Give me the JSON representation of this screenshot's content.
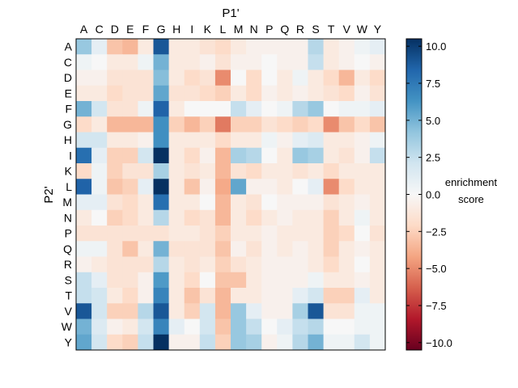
{
  "chart_data": {
    "type": "heatmap",
    "xlabel": "P1'",
    "ylabel": "P2'",
    "x_categories": [
      "A",
      "C",
      "D",
      "E",
      "F",
      "G",
      "H",
      "I",
      "K",
      "L",
      "M",
      "N",
      "P",
      "Q",
      "R",
      "S",
      "T",
      "V",
      "W",
      "Y"
    ],
    "y_categories": [
      "A",
      "C",
      "D",
      "E",
      "F",
      "G",
      "H",
      "I",
      "K",
      "L",
      "M",
      "N",
      "P",
      "Q",
      "R",
      "S",
      "T",
      "V",
      "W",
      "Y"
    ],
    "colorbar": {
      "label_line1": "enrichment",
      "label_line2": "score",
      "vmin": -10.5,
      "vmax": 10.5,
      "ticks": [
        10.0,
        7.5,
        5.0,
        2.5,
        0.0,
        -2.5,
        -5.0,
        -7.5,
        -10.0
      ],
      "tick_labels": [
        "10.0",
        "7.5",
        "5.0",
        "2.5",
        "0.0",
        "−2.5",
        "−5.0",
        "−7.5",
        "−10.0"
      ],
      "colormap": "RdBu diverging (red = negative, blue = positive)"
    },
    "values": [
      [
        4,
        1,
        -3,
        -3.5,
        -1,
        9,
        -1,
        -1,
        -1.5,
        -2,
        -1,
        -0.5,
        -0.5,
        -0.5,
        -0.5,
        3,
        -1,
        -0.5,
        0.5,
        1
      ],
      [
        0.5,
        0,
        -1,
        -1,
        0.5,
        5,
        -1,
        -1,
        -0.5,
        -1.5,
        -0.5,
        -0.5,
        0,
        -0.5,
        -0.5,
        2.5,
        -1,
        -0.5,
        0,
        -0.5
      ],
      [
        -0.5,
        -0.5,
        -1.5,
        -1.5,
        -1.5,
        4.5,
        -1,
        -2,
        -1.5,
        -5,
        0,
        -2,
        0,
        -1,
        0.5,
        -1,
        -2,
        -3.5,
        -1,
        -2
      ],
      [
        -1,
        -1,
        -2,
        -1.5,
        -1.5,
        5.5,
        -1.5,
        -1.5,
        -2,
        -2.5,
        -1,
        -2,
        -0.5,
        -1,
        -0.5,
        -1,
        -1.5,
        -2,
        -0.5,
        -1.5
      ],
      [
        5,
        2,
        -1.5,
        -1.5,
        0.5,
        8.5,
        -1,
        0,
        0,
        0,
        2.5,
        1,
        0,
        0.5,
        3,
        4,
        0,
        0.5,
        0.5,
        1
      ],
      [
        -2,
        -1,
        -3.5,
        -3.5,
        -3.5,
        6.5,
        -2.5,
        -3.5,
        -2.5,
        -5.5,
        -2.5,
        -2.5,
        -1.5,
        -2,
        -2.5,
        -2,
        -5,
        -3,
        -2,
        -3
      ],
      [
        2,
        2,
        -1,
        -1,
        -0.5,
        6.5,
        -1,
        -1,
        -1,
        -2,
        -1,
        -1,
        0.5,
        -0.5,
        1,
        1.5,
        -1,
        -1,
        -0.5,
        0.5
      ],
      [
        8,
        1,
        -2.5,
        -2.5,
        2,
        10.5,
        -1,
        -2,
        -0.5,
        -3.5,
        3.5,
        3,
        0,
        -1,
        4,
        3.5,
        -1,
        -1.5,
        -0.5,
        2.5
      ],
      [
        -2,
        0.5,
        -2.5,
        -1.5,
        -1.5,
        3.5,
        -1,
        -1.5,
        -1,
        -3.5,
        -1.5,
        -2,
        -1,
        -1,
        -1.5,
        -1,
        -2,
        -1,
        -1,
        -1
      ],
      [
        8.5,
        0.5,
        -3,
        -2.5,
        1,
        10.5,
        -1,
        -3,
        -0.5,
        -4,
        5.5,
        -0.5,
        -0.5,
        -1,
        0,
        1,
        -5,
        -2,
        -1,
        -1
      ],
      [
        1,
        1,
        -1.5,
        -2,
        -1,
        8,
        -1,
        -1,
        0,
        -3.5,
        -1,
        -1.5,
        0,
        -0.5,
        -0.5,
        -0.5,
        -1.5,
        -1,
        -0.5,
        -1
      ],
      [
        -1,
        0,
        -2.5,
        -2,
        -1,
        3,
        -1,
        -2,
        -1.5,
        -3.5,
        -1,
        -2,
        -1,
        -0.5,
        -1,
        -1,
        -2.5,
        -1,
        0.5,
        -1
      ],
      [
        -1.5,
        -1.5,
        -1.5,
        -1.5,
        -1.5,
        -1.5,
        -1,
        -1,
        -1.5,
        -2.5,
        -1,
        -1,
        -0.5,
        -1,
        -1,
        -1,
        -2.5,
        -2,
        0,
        -1.5
      ],
      [
        0.5,
        0.5,
        -1.5,
        -3,
        -1,
        5,
        -1.5,
        -1.5,
        -1.5,
        -3,
        -0.5,
        -1.5,
        -0.5,
        -1,
        -0.5,
        -1,
        -2.5,
        -1,
        -0.5,
        -1
      ],
      [
        -0.5,
        -1,
        -1.5,
        -1.5,
        -1.5,
        3,
        -1,
        -1.5,
        -1,
        -2.5,
        -1.5,
        -1,
        -0.5,
        -0.5,
        -0.5,
        -1,
        -2,
        -1,
        0,
        -1
      ],
      [
        2.5,
        1,
        -1.5,
        -1.5,
        -0.5,
        6,
        -1,
        -2,
        0,
        -3,
        -3,
        -1,
        -0.5,
        -0.5,
        -0.5,
        0.5,
        -1,
        -1,
        -0.5,
        -1
      ],
      [
        2.5,
        2,
        -1,
        -2,
        -0.5,
        7,
        -1,
        -3,
        -1.5,
        -3.5,
        -1,
        -1,
        -0.5,
        -0.5,
        1,
        2,
        -2.5,
        -2.5,
        1,
        -1
      ],
      [
        9,
        2,
        -2.5,
        -2.5,
        3,
        9,
        -1,
        -2.5,
        2,
        -3.5,
        4,
        1,
        -0.5,
        -0.5,
        3.5,
        9,
        -1.5,
        -1.5,
        0.5,
        0.5
      ],
      [
        5,
        1.5,
        -0.5,
        -1,
        2,
        7,
        1,
        0,
        2,
        -3,
        4,
        2.5,
        0,
        1,
        2.5,
        3,
        0,
        0,
        0.5,
        0.5
      ],
      [
        5.5,
        2,
        -2,
        -2.5,
        2.5,
        10.5,
        -0.5,
        -0.5,
        2.5,
        -2.5,
        4,
        3.5,
        -0.5,
        0.5,
        3,
        5,
        0.5,
        0.5,
        2,
        0.5
      ]
    ]
  }
}
